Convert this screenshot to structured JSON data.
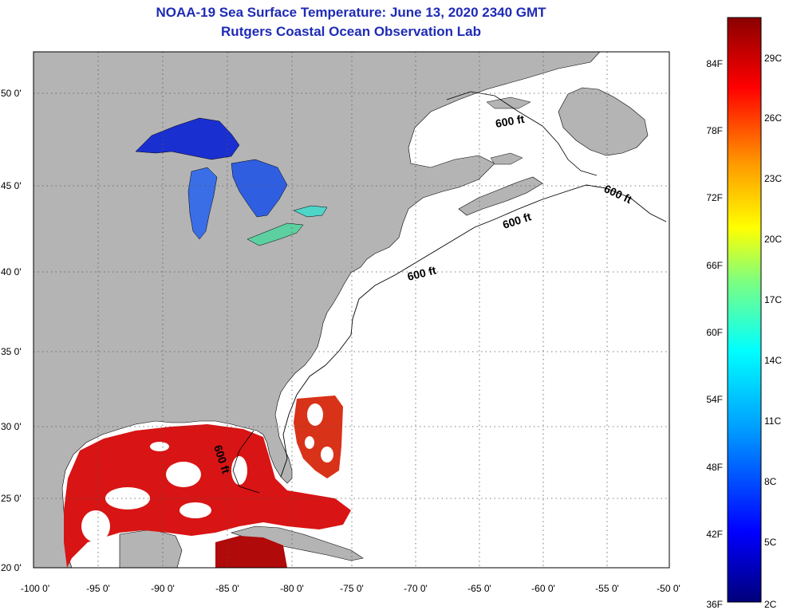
{
  "title": {
    "line1": "NOAA-19 Sea Surface Temperature:  June 13, 2020 2340 GMT",
    "line2": "Rutgers Coastal Ocean Observation Lab"
  },
  "map": {
    "lon_range": [
      -100,
      -50
    ],
    "lat_range": [
      20,
      52.5
    ],
    "lon_ticks": [
      "-100 0'",
      "-95 0'",
      "-90 0'",
      "-85 0'",
      "-80 0'",
      "-75 0'",
      "-70 0'",
      "-65 0'",
      "-60 0'",
      "-55 0'",
      "-50 0'"
    ],
    "lat_ticks": [
      "50 0'",
      "45 0'",
      "40 0'",
      "35 0'",
      "30 0'",
      "25 0'",
      "20 0'"
    ],
    "contour_labels": [
      "600 ft",
      "600 ft",
      "600 ft",
      "600 ft",
      "600 ft"
    ],
    "colors": {
      "land": "#b4b4b4",
      "ocean_nodata": "#ffffff",
      "warm_sst": "#d81414",
      "lake_cold": "#1434c8"
    }
  },
  "colorbar": {
    "fahrenheit_labels": [
      "84F",
      "78F",
      "72F",
      "66F",
      "60F",
      "54F",
      "48F",
      "42F",
      "36F"
    ],
    "celsius_labels": [
      "29C",
      "26C",
      "23C",
      "20C",
      "17C",
      "14C",
      "11C",
      "8C",
      "5C",
      "2C"
    ],
    "colors": [
      "#00007a",
      "#0000ff",
      "#00a0ff",
      "#00ffff",
      "#7fff7f",
      "#ffff00",
      "#ff9900",
      "#ff0000",
      "#8a0000"
    ]
  }
}
